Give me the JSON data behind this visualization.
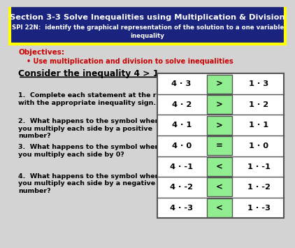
{
  "title_line1": "Section 3-3 Solve Inequalities using Multiplication & Division",
  "title_line2": "SPI 22N:  identify the graphical representation of the solution to a one variable",
  "title_line3": "inequality",
  "title_bg": "#1a237e",
  "title_border": "#ffff00",
  "title_text_color": "#ffffff",
  "bg_color": "#d3d3d3",
  "objectives_label": "Objectives:",
  "objectives_color": "#cc0000",
  "bullet_text": "Use multiplication and division to solve inequalities",
  "bullet_color": "#cc0000",
  "consider_text": "Consider the inequality 4 > 1.",
  "questions": [
    "1.  Complete each statement at the right\nwith the appropriate inequality sign.",
    "2.  What happens to the symbol when\nyou multiply each side by a positive\nnumber?",
    "3.  What happens to the symbol when\nyou multiply each side by 0?",
    "4.  What happens to the symbol when\nyou multiply each side by a negative\nnumber?"
  ],
  "table_rows": [
    {
      "left": "4 · 3",
      "sign": ">",
      "right": "1 · 3"
    },
    {
      "left": "4 · 2",
      "sign": ">",
      "right": "1 · 2"
    },
    {
      "left": "4 · 1",
      "sign": ">",
      "right": "1 · 1"
    },
    {
      "left": "4 · 0",
      "sign": "=",
      "right": "1 · 0"
    },
    {
      "left": "4 · -1",
      "sign": "<",
      "right": "1 · -1"
    },
    {
      "left": "4 · -2",
      "sign": "<",
      "right": "1 · -2"
    },
    {
      "left": "4 · -3",
      "sign": "<",
      "right": "1 · -3"
    }
  ],
  "table_bg": "#ffffff",
  "cell_sign_bg": "#90ee90",
  "cell_border": "#555555"
}
